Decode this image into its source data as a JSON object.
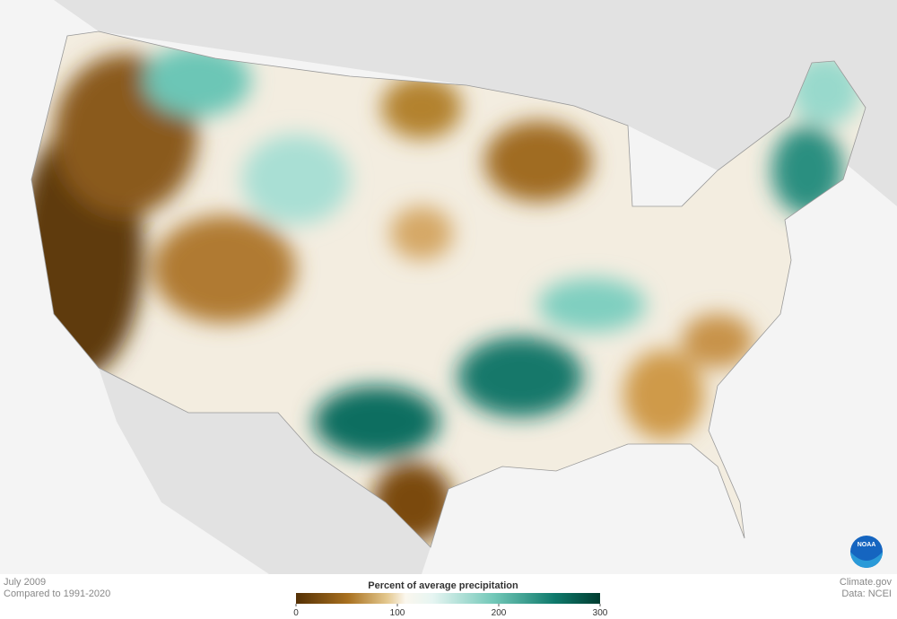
{
  "caption": {
    "date": "July 2009",
    "baseline": "Compared to 1991-2020"
  },
  "legend": {
    "title": "Percent of average precipitation",
    "range": [
      0,
      300
    ],
    "ticks": [
      0,
      100,
      200,
      300
    ]
  },
  "credits": {
    "site": "Climate.gov",
    "source": "Data: NCEI"
  },
  "logo": "NOAA"
}
